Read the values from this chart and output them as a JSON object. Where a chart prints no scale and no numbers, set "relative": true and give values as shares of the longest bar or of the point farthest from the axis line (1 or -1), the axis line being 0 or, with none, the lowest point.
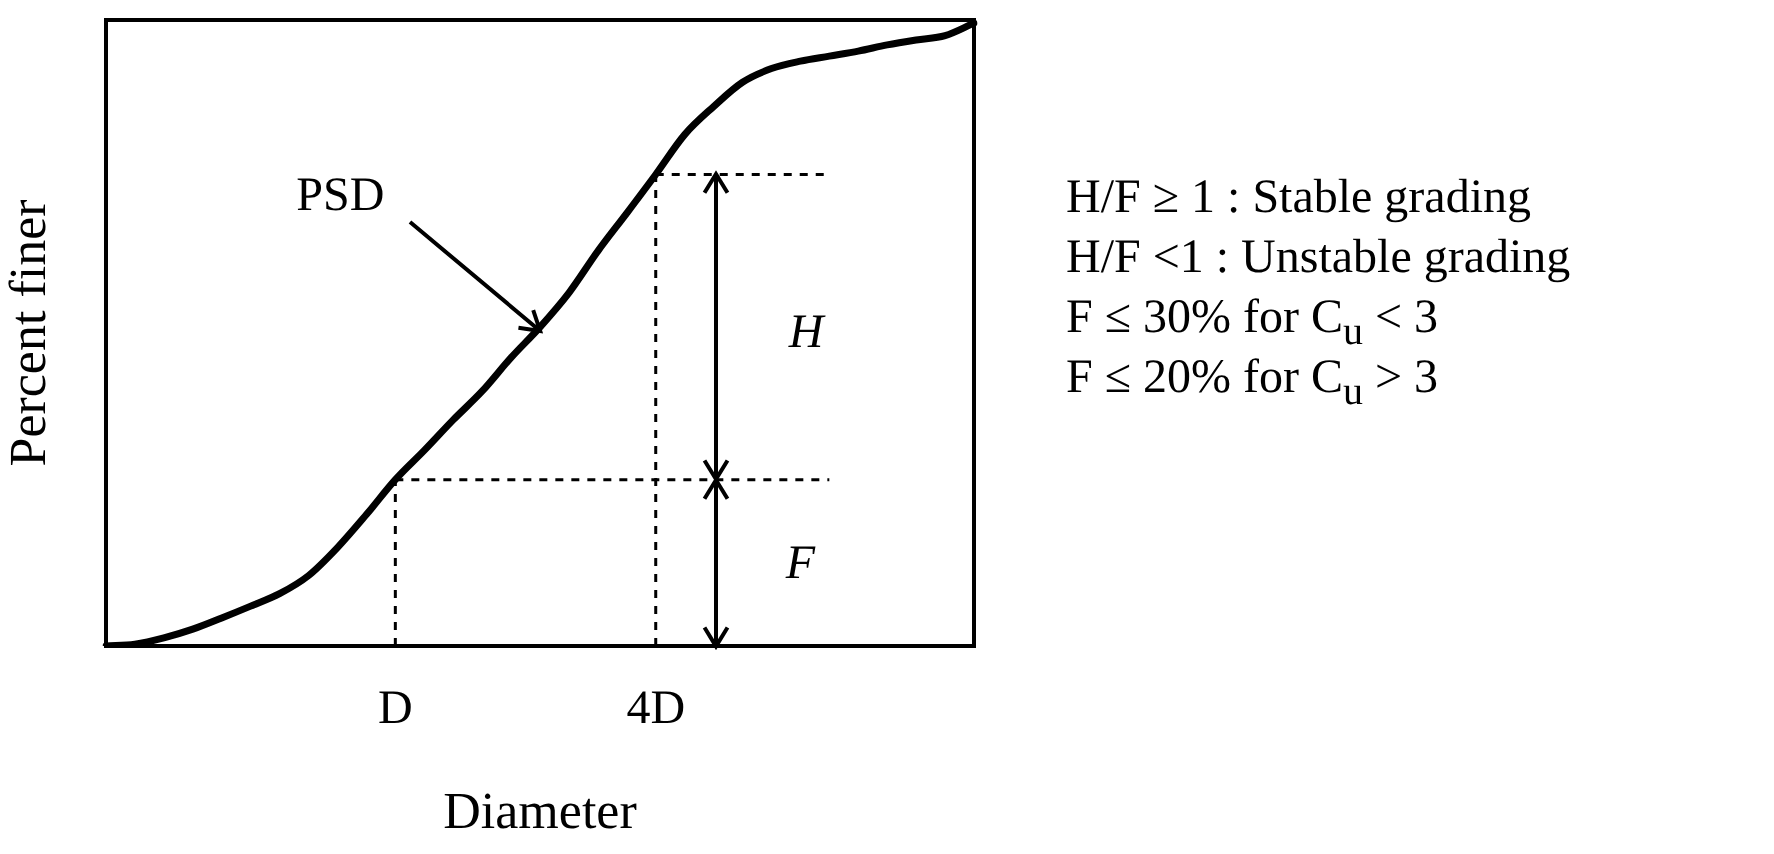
{
  "chart_data": {
    "type": "line",
    "xlabel": "Diameter",
    "ylabel": "Percent finer",
    "relative": true,
    "categories": [
      null,
      null,
      null,
      null,
      null,
      null,
      null,
      null,
      null,
      null,
      "D",
      null,
      null,
      null,
      null,
      null,
      null,
      null,
      null,
      "4D",
      null,
      null,
      null,
      null,
      null,
      null,
      null,
      null,
      null,
      null,
      null
    ],
    "series": [
      {
        "color": "#000000",
        "values": [
          0,
          0.003,
          0.013,
          0.027,
          0.045,
          0.064,
          0.084,
          0.113,
          0.158,
          0.211,
          0.267,
          0.314,
          0.363,
          0.409,
          0.463,
          0.512,
          0.567,
          0.634,
          0.695,
          0.757,
          0.821,
          0.866,
          0.905,
          0.927,
          0.939,
          0.947,
          0.955,
          0.965,
          0.973,
          0.98,
          1
        ]
      }
    ],
    "ref_lines": [
      {
        "axis": "y",
        "value": 0.267,
        "line_style": "dashed"
      },
      {
        "axis": "y",
        "value": 0.757,
        "line_style": "dashed"
      },
      {
        "axis": "x",
        "value": "D",
        "line_style": "dashed"
      },
      {
        "axis": "x",
        "value": "4D",
        "line_style": "dashed"
      }
    ],
    "annotations": [
      "PSD",
      "H",
      "F",
      "H/F ≥ 1 : Stable grading",
      "H/F <1 : Unstable grading",
      "F ≤ 30% for C$_{u}$ < 3",
      "F ≤ 20% for C$_{u}$ > 3"
    ],
    "grid": false,
    "legend": false,
    "marker": "none",
    "line_style": "solid"
  }
}
